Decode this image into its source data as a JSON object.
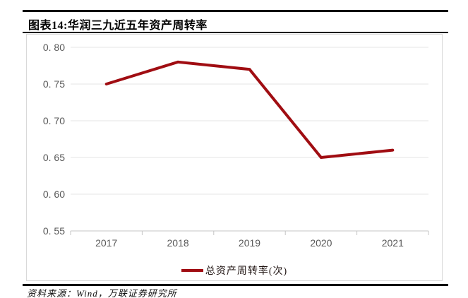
{
  "header": {
    "title": "图表14:华润三九近五年资产周转率"
  },
  "legend": {
    "label": "总资产周转率(次)"
  },
  "footer": {
    "source": "资料来源：Wind，万联证券研究所"
  },
  "colors": {
    "line": "#a00d12",
    "grid": "#e4e4e4",
    "axis": "#c4c4c4",
    "tick_label": "#595959",
    "rule": "#000000",
    "box_border": "#d9d9d9"
  },
  "chart_data": {
    "type": "line",
    "title": "华润三九近五年资产周转率",
    "categories": [
      "2017",
      "2018",
      "2019",
      "2020",
      "2021"
    ],
    "series": [
      {
        "name": "总资产周转率(次)",
        "values": [
          0.75,
          0.78,
          0.77,
          0.65,
          0.66
        ]
      }
    ],
    "xlabel": "",
    "ylabel": "",
    "ylim": [
      0.55,
      0.8
    ],
    "y_tick_step": 0.05,
    "y_tick_labels": [
      "0. 55",
      "0. 60",
      "0. 65",
      "0. 70",
      "0. 75",
      "0. 80"
    ],
    "grid": "horizontal",
    "legend_position": "bottom",
    "line_width": 4
  }
}
